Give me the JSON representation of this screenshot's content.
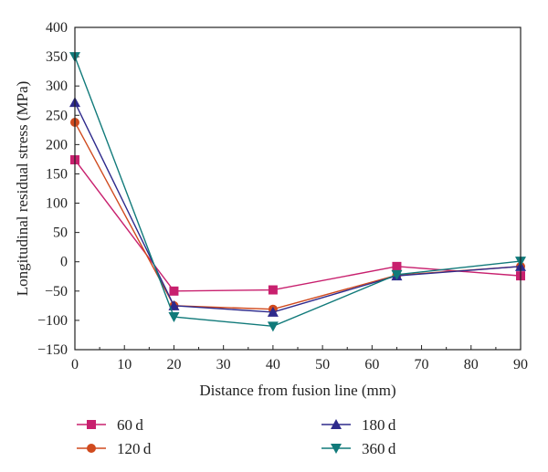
{
  "chart_data": {
    "type": "line",
    "title": "",
    "xlabel": "Distance from fusion line (mm)",
    "ylabel": "Longitudinal residual stress (MPa)",
    "xlim": [
      0,
      90
    ],
    "ylim": [
      -150,
      400
    ],
    "xticks": [
      0,
      10,
      20,
      30,
      40,
      50,
      60,
      70,
      80,
      90
    ],
    "yticks": [
      400,
      350,
      300,
      250,
      200,
      150,
      100,
      50,
      0,
      -50,
      -100,
      -150
    ],
    "x": [
      0,
      20,
      40,
      65,
      90
    ],
    "grid": false,
    "legend_position": "bottom",
    "series": [
      {
        "name": "60 d",
        "color": "#c8206e",
        "marker": "square",
        "values": [
          174,
          -50,
          -48,
          -8,
          -24
        ]
      },
      {
        "name": "120 d",
        "color": "#d04a1e",
        "marker": "circle",
        "values": [
          238,
          -75,
          -81,
          -23,
          -8
        ]
      },
      {
        "name": "180 d",
        "color": "#2e2a8c",
        "marker": "triangle-up",
        "values": [
          272,
          -75,
          -86,
          -24,
          -8
        ]
      },
      {
        "name": "360 d",
        "color": "#117a7a",
        "marker": "triangle-down",
        "values": [
          350,
          -94,
          -110,
          -22,
          1
        ]
      }
    ]
  }
}
